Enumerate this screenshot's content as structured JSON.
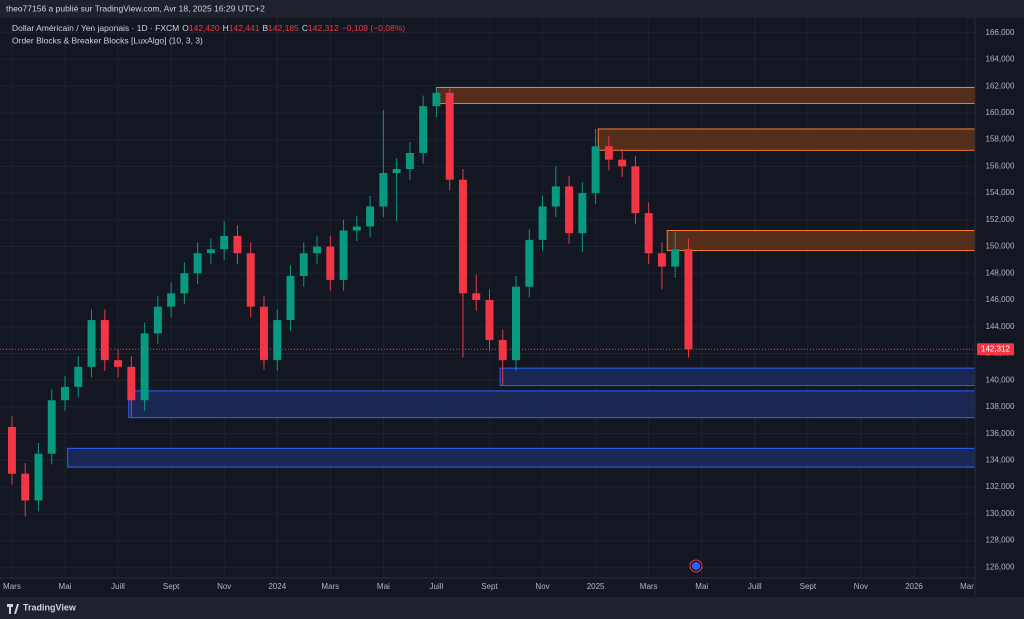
{
  "header": {
    "author_line": "theo77156 a publié sur TradingView.com, Avr 18, 2025 16:29 UTC+2"
  },
  "footer": {
    "brand": "TradingView"
  },
  "chart_data": {
    "type": "candlestick",
    "title": "Dollar Américain / Yen japonais · 1D · FXCM",
    "ohlc": [
      {
        "label": "O",
        "value": "142,420"
      },
      {
        "label": "H",
        "value": "142,441"
      },
      {
        "label": "B",
        "value": "142,185"
      },
      {
        "label": "C",
        "value": "142,312"
      }
    ],
    "change": "−0,108 (−0,08%)",
    "indicator": "Order Blocks & Breaker Blocks [LuxAlgo] (10, 3, 3)",
    "up_color": "#089981",
    "down_color": "#f23645",
    "x": [
      0,
      0.5,
      1,
      1.5,
      2,
      2.5,
      3,
      3.5,
      4,
      4.5,
      5,
      5.5,
      6,
      6.5,
      7,
      7.5,
      8,
      8.5,
      9,
      9.5,
      10,
      10.5,
      11,
      11.5,
      12,
      12.5,
      13,
      13.5,
      14,
      14.5,
      15,
      15.5,
      16,
      16.5,
      17,
      17.5,
      18,
      18.5,
      19,
      19.5,
      20,
      20.5,
      21,
      21.5,
      22,
      22.5,
      23,
      23.5,
      24,
      24.5,
      25,
      25.5
    ],
    "open": [
      136.5,
      133.0,
      131.0,
      134.5,
      138.5,
      139.5,
      141.0,
      144.5,
      141.5,
      141.0,
      138.5,
      143.5,
      145.5,
      146.5,
      148.0,
      149.5,
      149.8,
      150.8,
      149.5,
      145.5,
      141.5,
      144.5,
      147.8,
      149.5,
      150.0,
      147.5,
      151.2,
      151.5,
      153.0,
      155.5,
      155.8,
      157.0,
      160.5,
      161.5,
      155.0,
      146.5,
      146.0,
      143.0,
      141.5,
      147.0,
      150.5,
      153.0,
      154.5,
      151.0,
      154.0,
      157.5,
      156.5,
      156.0,
      152.5,
      149.5,
      148.5,
      149.8
    ],
    "high": [
      137.3,
      133.8,
      135.3,
      139.3,
      140.3,
      141.8,
      145.3,
      145.3,
      142.3,
      141.8,
      144.3,
      146.3,
      147.3,
      148.8,
      150.3,
      150.6,
      151.9,
      151.6,
      150.3,
      146.3,
      145.3,
      148.6,
      150.3,
      150.8,
      150.8,
      152.0,
      152.3,
      153.8,
      160.2,
      156.6,
      157.8,
      161.3,
      161.9,
      161.8,
      155.8,
      147.9,
      146.8,
      143.8,
      147.8,
      151.3,
      153.8,
      156.0,
      155.3,
      154.8,
      158.8,
      158.3,
      157.3,
      156.8,
      153.3,
      150.3,
      151.1,
      150.6
    ],
    "low": [
      132.2,
      129.8,
      130.2,
      133.7,
      137.7,
      138.7,
      140.2,
      140.7,
      140.2,
      137.2,
      137.7,
      142.7,
      144.7,
      145.7,
      147.2,
      148.7,
      149.0,
      148.7,
      144.7,
      140.8,
      140.7,
      143.7,
      147.0,
      148.7,
      146.7,
      146.7,
      150.4,
      150.7,
      152.2,
      151.9,
      155.0,
      156.2,
      159.7,
      154.2,
      141.7,
      145.2,
      142.2,
      139.6,
      140.7,
      146.2,
      149.7,
      152.2,
      150.2,
      149.6,
      153.2,
      155.7,
      155.2,
      151.7,
      148.7,
      146.8,
      147.7,
      141.7
    ],
    "close": [
      133.0,
      131.0,
      134.5,
      138.5,
      139.5,
      141.0,
      144.5,
      141.5,
      141.0,
      138.5,
      143.5,
      145.5,
      146.5,
      148.0,
      149.5,
      149.8,
      150.8,
      149.5,
      145.5,
      141.5,
      144.5,
      147.8,
      149.5,
      150.0,
      147.5,
      151.2,
      151.5,
      153.0,
      155.5,
      155.8,
      157.0,
      160.5,
      161.5,
      155.0,
      146.5,
      146.0,
      143.0,
      141.5,
      147.0,
      150.5,
      153.0,
      154.5,
      151.0,
      154.0,
      157.5,
      156.5,
      156.0,
      152.5,
      149.5,
      148.5,
      149.8,
      142.312
    ],
    "zones": [
      {
        "from": 16.0,
        "y": [
          160.7,
          161.9
        ],
        "fill": "#6b3519",
        "border": "#f57c35"
      },
      {
        "from": 22.1,
        "y": [
          157.2,
          158.8
        ],
        "fill": "#6b3519",
        "border": "#f57c35"
      },
      {
        "from": 24.7,
        "y": [
          149.7,
          151.2
        ],
        "fill": "#6b3519",
        "border": "#f57c35"
      },
      {
        "from": 18.4,
        "y": [
          139.6,
          140.9
        ],
        "fill": "#1c2d63",
        "border": "#2962ff"
      },
      {
        "from": 4.4,
        "y": [
          137.2,
          139.2
        ],
        "fill": "#1c2d63",
        "border": "#2962ff"
      },
      {
        "from": 2.1,
        "y": [
          133.5,
          134.9
        ],
        "fill": "#1c2d63",
        "border": "#2962ff"
      }
    ],
    "last_price": 142.312,
    "last_price_label": "142,312",
    "last_price_color": "#f23645",
    "xlim": [
      -0.45,
      36.3
    ],
    "ylim": [
      125.2,
      167.1
    ],
    "grid": true,
    "xticks": [
      {
        "value": 0,
        "label": "Mars"
      },
      {
        "value": 2,
        "label": "Mai"
      },
      {
        "value": 4,
        "label": "Juill"
      },
      {
        "value": 6,
        "label": "Sept"
      },
      {
        "value": 8,
        "label": "Nov"
      },
      {
        "value": 10,
        "label": "2024"
      },
      {
        "value": 12,
        "label": "Mars"
      },
      {
        "value": 14,
        "label": "Mai"
      },
      {
        "value": 16,
        "label": "Juill"
      },
      {
        "value": 18,
        "label": "Sept"
      },
      {
        "value": 20,
        "label": "Nov"
      },
      {
        "value": 22,
        "label": "2025"
      },
      {
        "value": 24,
        "label": "Mars"
      },
      {
        "value": 26,
        "label": "Mai"
      },
      {
        "value": 28,
        "label": "Juill"
      },
      {
        "value": 30,
        "label": "Sept"
      },
      {
        "value": 32,
        "label": "Nov"
      },
      {
        "value": 34,
        "label": "2026"
      },
      {
        "value": 36,
        "label": "Mar"
      }
    ],
    "yticks": [
      {
        "value": 126,
        "label": "126,000"
      },
      {
        "value": 128,
        "label": "128,000"
      },
      {
        "value": 130,
        "label": "130,000"
      },
      {
        "value": 132,
        "label": "132,000"
      },
      {
        "value": 134,
        "label": "134,000"
      },
      {
        "value": 136,
        "label": "136,000"
      },
      {
        "value": 138,
        "label": "138,000"
      },
      {
        "value": 140,
        "label": "140,000"
      },
      {
        "value": 142,
        "label": "142,000"
      },
      {
        "value": 144,
        "label": "144,000"
      },
      {
        "value": 146,
        "label": "146,000"
      },
      {
        "value": 148,
        "label": "148,000"
      },
      {
        "value": 150,
        "label": "150,000"
      },
      {
        "value": 152,
        "label": "152,000"
      },
      {
        "value": 154,
        "label": "154,000"
      },
      {
        "value": 156,
        "label": "156,000"
      },
      {
        "value": 158,
        "label": "158,000"
      },
      {
        "value": 160,
        "label": "160,000"
      },
      {
        "value": 162,
        "label": "162,000"
      },
      {
        "value": 164,
        "label": "164,000"
      },
      {
        "value": 166,
        "label": "166,000"
      }
    ]
  }
}
